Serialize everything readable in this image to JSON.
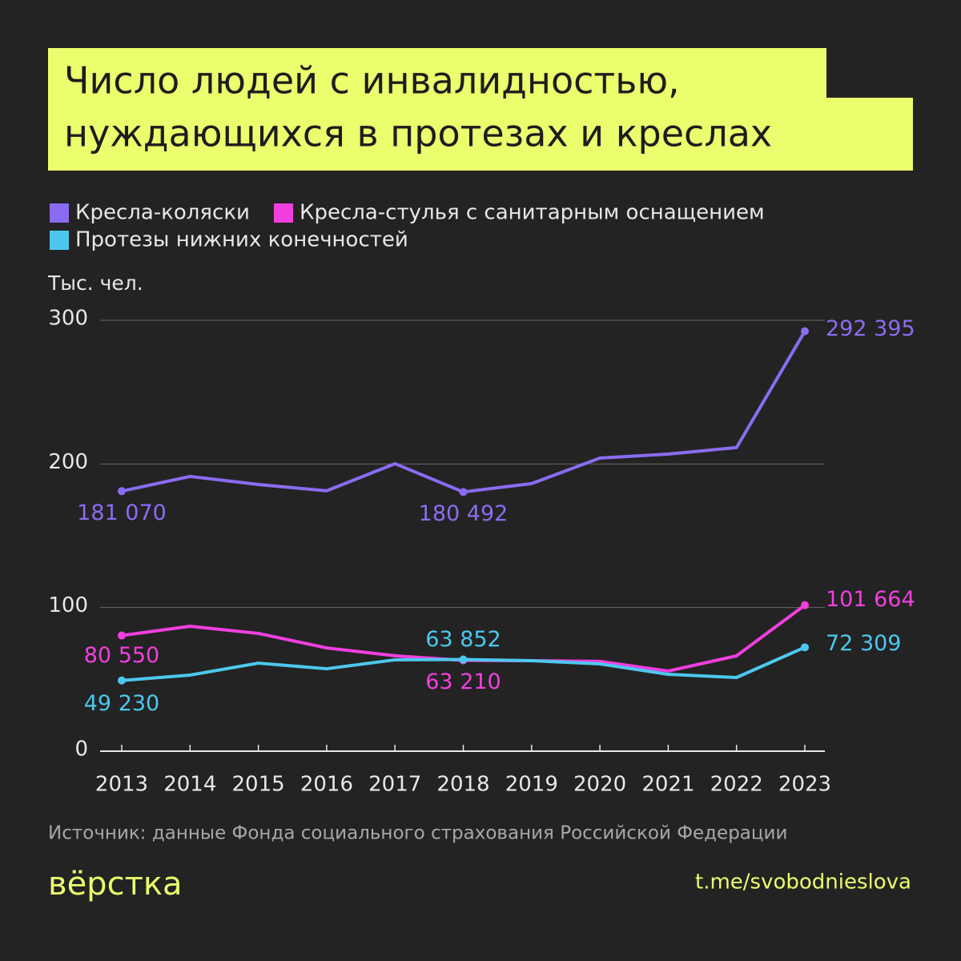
{
  "chart_data": {
    "type": "line",
    "title": [
      "Число людей с инвалидностью,",
      "нуждающихся в протезах и креслах"
    ],
    "y_label": "Тыс. чел.",
    "categories": [
      "2013",
      "2014",
      "2015",
      "2016",
      "2017",
      "2018",
      "2019",
      "2020",
      "2021",
      "2022",
      "2023"
    ],
    "series": [
      {
        "name": "Кресла-коляски",
        "color": "#8a6cf2",
        "values": [
          181.07,
          191.3,
          185.7,
          181.3,
          200.2,
          180.492,
          186.3,
          204.1,
          206.9,
          211.4,
          292.395
        ],
        "value_labels": [
          "181 070",
          null,
          null,
          null,
          null,
          "180 492",
          null,
          null,
          null,
          null,
          "292 395"
        ]
      },
      {
        "name": "Кресла-стулья с санитарным оснащением",
        "color": "#f23fe0",
        "values": [
          80.55,
          87,
          82,
          71.9,
          66.4,
          63.21,
          63,
          62.5,
          55.8,
          66.4,
          101.664
        ],
        "value_labels": [
          "80 550",
          null,
          null,
          null,
          null,
          "63 210",
          null,
          null,
          null,
          null,
          "101 664"
        ]
      },
      {
        "name": "Протезы нижних конечностей",
        "color": "#4cc8ee",
        "values": [
          49.23,
          53,
          61.3,
          57.4,
          63.6,
          63.852,
          63,
          60.8,
          53.5,
          51.3,
          72.309
        ],
        "value_labels": [
          "49 230",
          null,
          null,
          null,
          null,
          "63 852",
          null,
          null,
          null,
          null,
          "72 309"
        ]
      }
    ],
    "ylim": [
      0,
      300
    ],
    "yticks": [
      0,
      100,
      200,
      300
    ],
    "grid": true,
    "source": "Источник: данные Фонда социального страхования Российской Федерации",
    "brand": "вёрстка",
    "link": "t.me/svobodnieslova"
  }
}
